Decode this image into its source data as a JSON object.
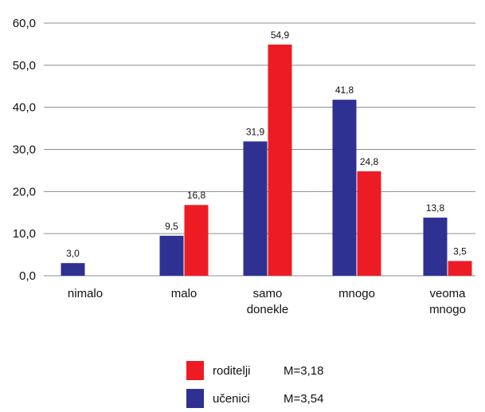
{
  "chart_data": {
    "type": "bar",
    "categories": [
      [
        "nimalo"
      ],
      [
        "malo"
      ],
      [
        "samo",
        "donekle"
      ],
      [
        "mnogo"
      ],
      [
        "veoma",
        "mnogo"
      ]
    ],
    "series": [
      {
        "name": "učenici",
        "stat": "M=3,54",
        "color": "#2e3192",
        "values": [
          3.0,
          9.5,
          31.9,
          41.8,
          13.8
        ],
        "labels": [
          "3,0",
          "9,5",
          "31,9",
          "41,8",
          "13,8"
        ]
      },
      {
        "name": "roditelji",
        "stat": "M=3,18",
        "color": "#ed1c24",
        "values": [
          null,
          16.8,
          54.9,
          24.8,
          3.5
        ],
        "labels": [
          "",
          "16,8",
          "54,9",
          "24,8",
          "3,5"
        ]
      }
    ],
    "y_ticks": [
      0,
      10,
      20,
      30,
      40,
      50,
      60
    ],
    "y_tick_labels": [
      "0,0",
      "10,0",
      "20,0",
      "30,0",
      "40,0",
      "50,0",
      "60,0"
    ],
    "ylim": [
      0,
      60
    ],
    "grid": true,
    "legend": {
      "placement": "bottom-center",
      "order": [
        "roditelji",
        "učenici"
      ]
    }
  }
}
